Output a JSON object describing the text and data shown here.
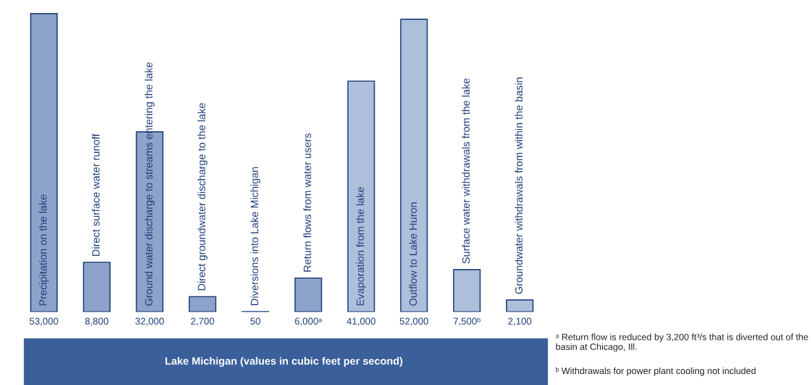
{
  "chart_data": {
    "type": "bar",
    "categories": [
      "Precipitation on the lake",
      "Direct surface water runoff",
      "Ground water discharge to streams entering the lake",
      "Direct groundwater discharge to the lake",
      "Diversions into Lake Michigan",
      "Return flows from water users",
      "Evaporation from the lake",
      "Outflow to Lake Huron",
      "Surface water withdrawals from the lake",
      "Groundwater withdrawals from within the basin"
    ],
    "values": [
      53000,
      8800,
      32000,
      2700,
      50,
      6000,
      41000,
      52000,
      7500,
      2100
    ],
    "value_labels": [
      "53,000",
      "8,800",
      "32,000",
      "2,700",
      "50",
      "6,000ᵃ",
      "41,000",
      "52,000",
      "7,500ᵇ",
      "2,100"
    ],
    "colors": [
      "#8da3c9",
      "#8da3c9",
      "#8da3c9",
      "#8da3c9",
      "#8da3c9",
      "#8da3c9",
      "#aebfdb",
      "#aebfdb",
      "#aebfdb",
      "#aebfdb"
    ],
    "annotations": [
      "Lake Michigan (values in cubic feet per second)",
      "ᵃ Return flow is reduced by 3,200 ft³/s that is diverted out of the basin at Chicago, Ill.",
      "ᵇ Withdrawals for power plant cooling not included"
    ]
  }
}
